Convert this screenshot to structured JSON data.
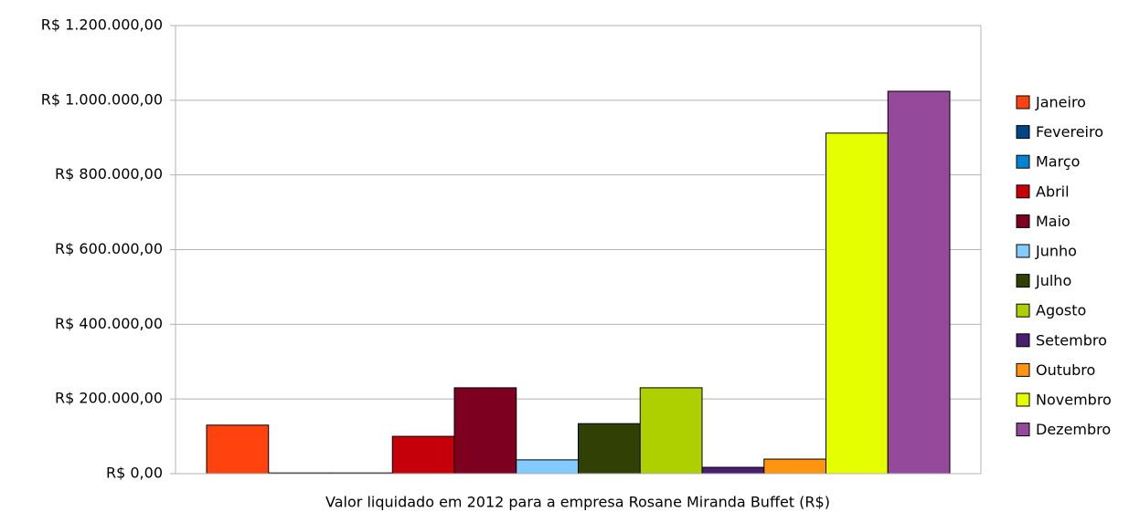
{
  "chart_data": {
    "type": "bar",
    "xlabel": "Valor liquidado em 2012 para a empresa Rosane Miranda Buffet (R$)",
    "series": [
      {
        "name": "Janeiro",
        "color": "#ff420e",
        "values": [
          130000
        ]
      },
      {
        "name": "Fevereiro",
        "color": "#004586",
        "values": [
          2000
        ]
      },
      {
        "name": "Março",
        "color": "#0084d1",
        "values": [
          2000
        ]
      },
      {
        "name": "Abril",
        "color": "#c5000b",
        "values": [
          100000
        ]
      },
      {
        "name": "Maio",
        "color": "#7e0021",
        "values": [
          230000
        ]
      },
      {
        "name": "Junho",
        "color": "#83caff",
        "values": [
          37000
        ]
      },
      {
        "name": "Julho",
        "color": "#314004",
        "values": [
          134000
        ]
      },
      {
        "name": "Agosto",
        "color": "#aecf00",
        "values": [
          230000
        ]
      },
      {
        "name": "Setembro",
        "color": "#4b1f6f",
        "values": [
          17000
        ]
      },
      {
        "name": "Outubro",
        "color": "#ff950e",
        "values": [
          39000
        ]
      },
      {
        "name": "Novembro",
        "color": "#e6ff00",
        "values": [
          912000
        ]
      },
      {
        "name": "Dezembro",
        "color": "#94499b",
        "values": [
          1024000
        ]
      }
    ],
    "ylim": [
      0,
      1200000
    ],
    "yticks": [
      {
        "value": 0,
        "label": "R$ 0,00"
      },
      {
        "value": 200000,
        "label": "R$ 200.000,00"
      },
      {
        "value": 400000,
        "label": "R$ 400.000,00"
      },
      {
        "value": 600000,
        "label": "R$ 600.000,00"
      },
      {
        "value": 800000,
        "label": "R$ 800.000,00"
      },
      {
        "value": 1000000,
        "label": "R$ 1.000.000,00"
      },
      {
        "value": 1200000,
        "label": "R$ 1.200.000,00"
      }
    ],
    "grid": true,
    "legend": "right"
  }
}
